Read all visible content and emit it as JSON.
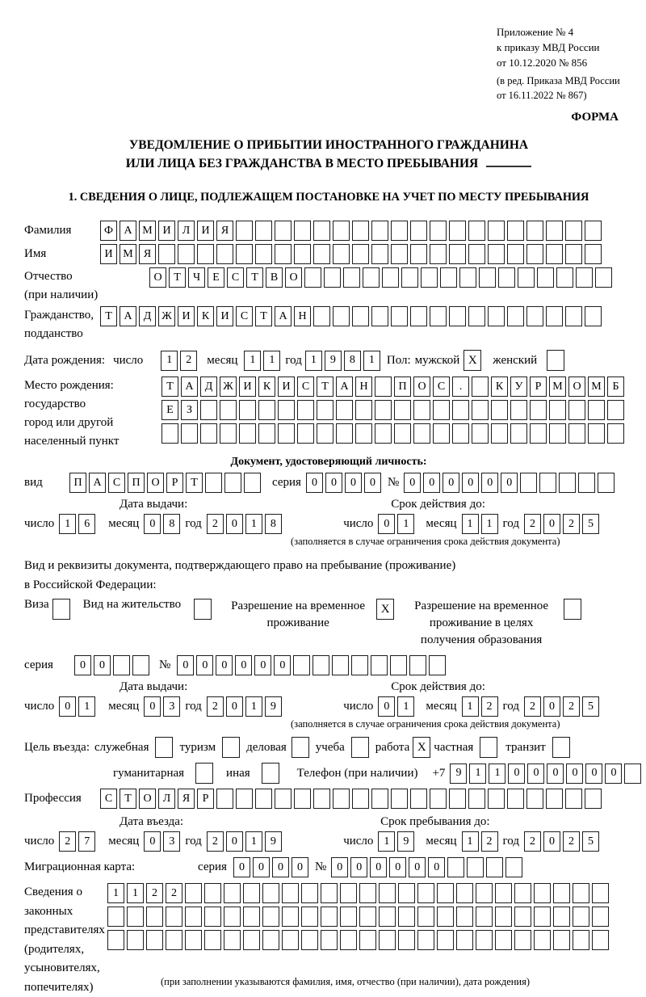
{
  "header": {
    "appendix_lines": [
      "Приложение № 4",
      "к приказу МВД России",
      "от 10.12.2020 № 856"
    ],
    "edition_lines": [
      "(в ред. Приказа МВД России",
      "от 16.11.2022 № 867)"
    ],
    "form_label": "ФОРМА"
  },
  "title": {
    "line1": "УВЕДОМЛЕНИЕ О ПРИБЫТИИ ИНОСТРАННОГО ГРАЖДАНИНА",
    "line2": "ИЛИ ЛИЦА БЕЗ ГРАЖДАНСТВА В МЕСТО ПРЕБЫВАНИЯ"
  },
  "section1": {
    "heading": "1. СВЕДЕНИЯ О ЛИЦЕ, ПОДЛЕЖАЩЕМ ПОСТАНОВКЕ НА УЧЕТ ПО МЕСТУ ПРЕБЫВАНИЯ"
  },
  "person": {
    "surname_label": "Фамилия",
    "surname": "ФАМИЛИЯ",
    "name_label": "Имя",
    "name": "ИМЯ",
    "patronymic_label": "Отчество",
    "patronymic_note": "(при наличии)",
    "patronymic": "ОТЧЕСТВО",
    "citizenship_label1": "Гражданство,",
    "citizenship_label2": "подданство",
    "citizenship": "ТАДЖИКИСТАН",
    "birth": {
      "label": "Дата рождения:",
      "day_label": "число",
      "day": "12",
      "month_label": "месяц",
      "month": "11",
      "year_label": "год",
      "year": "1981",
      "sex_label": "Пол:",
      "male_label": "мужской",
      "male_mark": "X",
      "female_label": "женский",
      "female_mark": ""
    },
    "birthplace": {
      "label": "Место рождения:",
      "sublabel1": "государство",
      "sublabel2": "город или другой",
      "sublabel3": "населенный пункт",
      "line1": "ТАДЖИКИСТАН ПОС. КУРМОМБ",
      "line2": "ЕЗ",
      "line3": ""
    }
  },
  "identity_doc": {
    "heading": "Документ, удостоверяющий личность:",
    "kind_label": "вид",
    "kind": "ПАСПОРТ",
    "series_label": "серия",
    "series": "0000",
    "number_label": "№",
    "number": "000000",
    "issue_heading": "Дата выдачи:",
    "issue": {
      "day_label": "число",
      "day": "16",
      "month_label": "месяц",
      "month": "08",
      "year_label": "год",
      "year": "2018"
    },
    "expiry_heading": "Срок действия до:",
    "expiry": {
      "day_label": "число",
      "day": "01",
      "month_label": "месяц",
      "month": "11",
      "year_label": "год",
      "year": "2025"
    },
    "note": "(заполняется в случае ограничения срока действия документа)"
  },
  "residence_doc": {
    "intro1": "Вид и реквизиты документа, подтверждающего право на пребывание (проживание)",
    "intro2": "в Российской Федерации:",
    "options": [
      {
        "label": "Виза",
        "mark": ""
      },
      {
        "label": "Вид на жительство",
        "mark": ""
      },
      {
        "label": "Разрешение на временное проживание",
        "mark": "X"
      },
      {
        "label": "Разрешение на временное проживание в целях получения образования",
        "mark": ""
      }
    ],
    "series_label": "серия",
    "series": "00",
    "number_label": "№",
    "number": "000000",
    "issue_heading": "Дата выдачи:",
    "issue": {
      "day_label": "число",
      "day": "01",
      "month_label": "месяц",
      "month": "03",
      "year_label": "год",
      "year": "2019"
    },
    "expiry_heading": "Срок действия до:",
    "expiry": {
      "day_label": "число",
      "day": "01",
      "month_label": "месяц",
      "month": "12",
      "year_label": "год",
      "year": "2025"
    },
    "note": "(заполняется в случае ограничения срока действия документа)"
  },
  "visit": {
    "purpose_label": "Цель въезда:",
    "purposes": [
      {
        "label": "служебная",
        "mark": ""
      },
      {
        "label": "туризм",
        "mark": ""
      },
      {
        "label": "деловая",
        "mark": ""
      },
      {
        "label": "учеба",
        "mark": ""
      },
      {
        "label": "работа",
        "mark": "X"
      },
      {
        "label": "частная",
        "mark": ""
      },
      {
        "label": "транзит",
        "mark": ""
      },
      {
        "label": "гуманитарная",
        "mark": ""
      },
      {
        "label": "иная",
        "mark": ""
      }
    ],
    "phone_label": "Телефон (при наличии)",
    "phone_prefix": "+7",
    "phone": "911000000",
    "profession_label": "Профессия",
    "profession": "СТОЛЯР"
  },
  "entry": {
    "date_heading": "Дата въезда:",
    "date": {
      "day_label": "число",
      "day": "27",
      "month_label": "месяц",
      "month": "03",
      "year_label": "год",
      "year": "2019"
    },
    "stay_heading": "Срок пребывания до:",
    "stay": {
      "day_label": "число",
      "day": "19",
      "month_label": "месяц",
      "month": "12",
      "year_label": "год",
      "year": "2025"
    }
  },
  "migration_card": {
    "label": "Миграционная карта:",
    "series_label": "серия",
    "series": "0000",
    "number_label": "№",
    "number": "000000"
  },
  "representatives": {
    "label_lines": [
      "Сведения о",
      "законных",
      "представителях",
      "(родителях,",
      "усыновителях,",
      "попечителях)"
    ],
    "line1": "1122",
    "line2": "",
    "line3": "",
    "note": "(при заполнении указываются фамилия, имя, отчество (при наличии), дата рождения)"
  }
}
